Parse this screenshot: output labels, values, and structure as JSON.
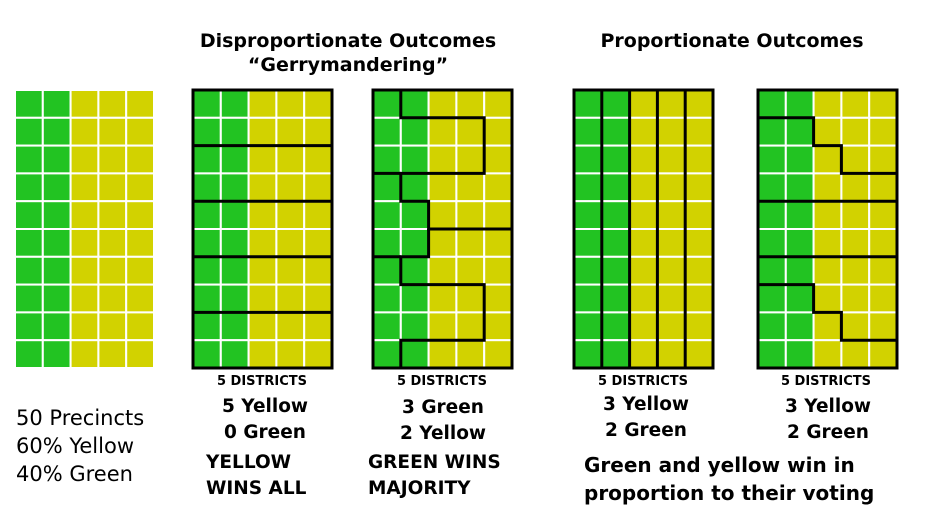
{
  "colors": {
    "green": "#22c322",
    "yellow": "#d2d200",
    "border": "#000000",
    "grid_line": "#ffffff"
  },
  "precincts": {
    "line1": "50 Precincts",
    "line2": "60% Yellow",
    "line3": "40% Green"
  },
  "disproportionate": {
    "heading_line1": "Disproportionate Outcomes",
    "heading_line2": "“Gerrymandering”",
    "map1": {
      "districts_label": "5 DISTRICTS",
      "result_line1": "5 Yellow",
      "result_line2": "0 Green",
      "summary_line1": "YELLOW",
      "summary_line2": "WINS ALL"
    },
    "map2": {
      "districts_label": "5 DISTRICTS",
      "result_line1": "3 Green",
      "result_line2": "2 Yellow",
      "summary_line1": "GREEN WINS",
      "summary_line2": "MAJORITY"
    }
  },
  "proportionate": {
    "heading": "Proportionate Outcomes",
    "map1": {
      "districts_label": "5 DISTRICTS",
      "result_line1": "3 Yellow",
      "result_line2": "2 Green"
    },
    "map2": {
      "districts_label": "5 DISTRICTS",
      "result_line1": "3 Yellow",
      "result_line2": "2 Green"
    },
    "summary_line1": "Green and yellow win in",
    "summary_line2": "proportion to their voting"
  }
}
